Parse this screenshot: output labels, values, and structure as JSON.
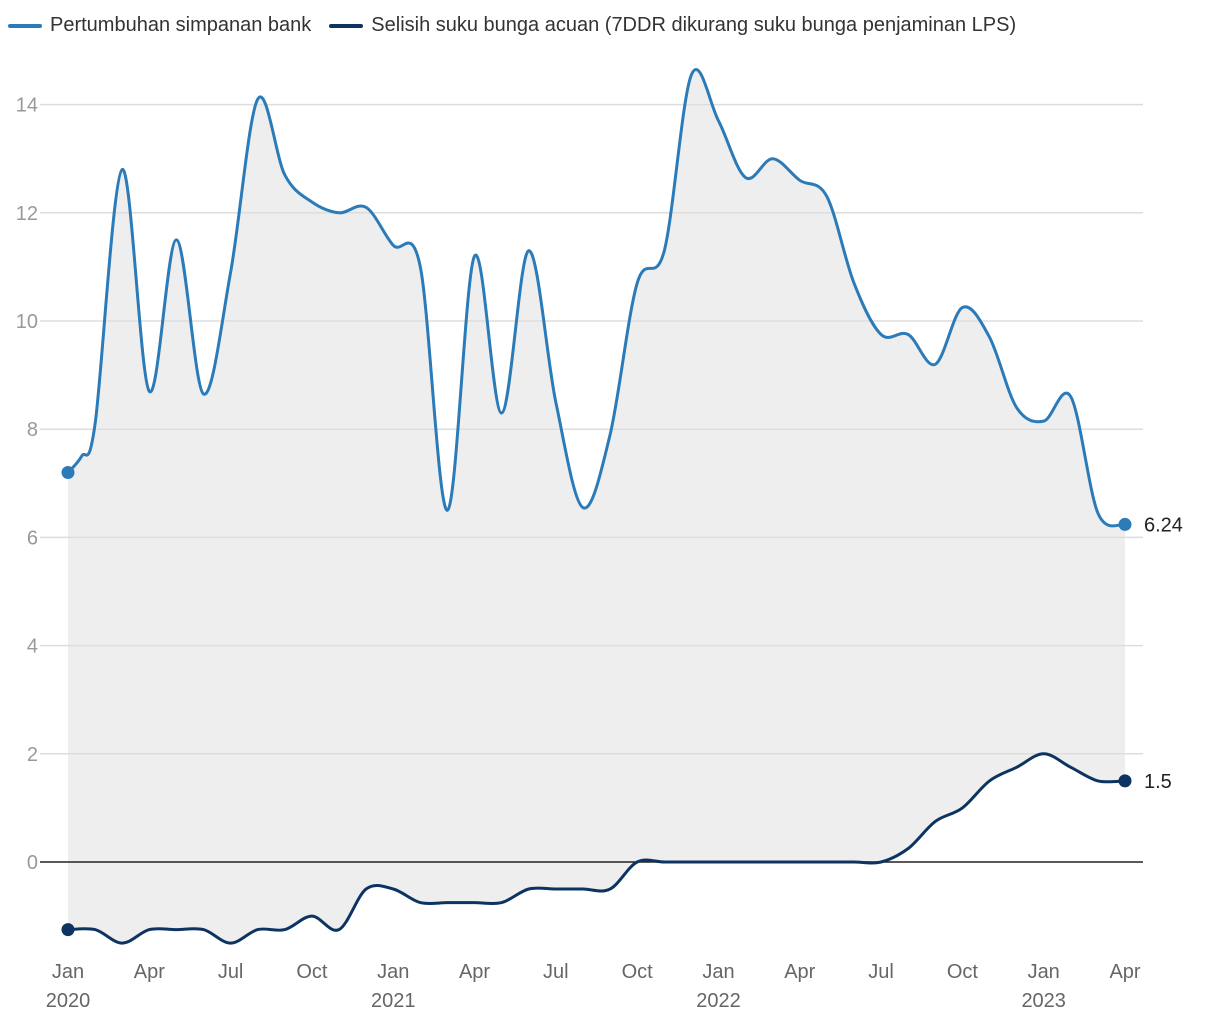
{
  "chart_data": {
    "type": "line",
    "title": "",
    "xlabel": "",
    "ylabel": "",
    "ylim": [
      -1.8,
      14.8
    ],
    "yticks": [
      0,
      2,
      4,
      6,
      8,
      10,
      12,
      14
    ],
    "grid": true,
    "legend_position": "top-left",
    "x_axis": {
      "start": "2020-01",
      "end": "2023-04",
      "ticks": [
        {
          "month_index": 0,
          "label": "Jan",
          "year": "2020"
        },
        {
          "month_index": 3,
          "label": "Apr",
          "year": ""
        },
        {
          "month_index": 6,
          "label": "Jul",
          "year": ""
        },
        {
          "month_index": 9,
          "label": "Oct",
          "year": ""
        },
        {
          "month_index": 12,
          "label": "Jan",
          "year": "2021"
        },
        {
          "month_index": 15,
          "label": "Apr",
          "year": ""
        },
        {
          "month_index": 18,
          "label": "Jul",
          "year": ""
        },
        {
          "month_index": 21,
          "label": "Oct",
          "year": ""
        },
        {
          "month_index": 24,
          "label": "Jan",
          "year": "2022"
        },
        {
          "month_index": 27,
          "label": "Apr",
          "year": ""
        },
        {
          "month_index": 30,
          "label": "Jul",
          "year": ""
        },
        {
          "month_index": 33,
          "label": "Oct",
          "year": ""
        },
        {
          "month_index": 36,
          "label": "Jan",
          "year": "2023"
        },
        {
          "month_index": 39,
          "label": "Apr",
          "year": ""
        }
      ]
    },
    "series": [
      {
        "name": "Pertumbuhan simpanan bank",
        "color": "#2b7bb9",
        "end_label": "6.24",
        "points": [
          [
            0,
            7.2
          ],
          [
            0.5,
            7.5
          ],
          [
            1,
            8.1
          ],
          [
            2,
            12.8
          ],
          [
            3,
            8.7
          ],
          [
            4,
            11.5
          ],
          [
            5,
            8.65
          ],
          [
            6,
            10.9
          ],
          [
            7,
            14.1
          ],
          [
            8,
            12.7
          ],
          [
            9,
            12.2
          ],
          [
            10,
            12.0
          ],
          [
            11,
            12.1
          ],
          [
            12,
            11.4
          ],
          [
            13,
            11.0
          ],
          [
            14,
            6.5
          ],
          [
            15,
            11.2
          ],
          [
            16,
            8.3
          ],
          [
            17,
            11.3
          ],
          [
            18,
            8.5
          ],
          [
            19,
            6.55
          ],
          [
            20,
            7.9
          ],
          [
            21,
            10.7
          ],
          [
            22,
            11.3
          ],
          [
            23,
            14.55
          ],
          [
            24,
            13.7
          ],
          [
            25,
            12.65
          ],
          [
            26,
            13.0
          ],
          [
            27,
            12.6
          ],
          [
            28,
            12.3
          ],
          [
            29,
            10.7
          ],
          [
            30,
            9.75
          ],
          [
            31,
            9.75
          ],
          [
            32,
            9.2
          ],
          [
            33,
            10.25
          ],
          [
            34,
            9.7
          ],
          [
            35,
            8.4
          ],
          [
            36,
            8.15
          ],
          [
            37,
            8.6
          ],
          [
            38,
            6.45
          ],
          [
            39,
            6.24
          ]
        ]
      },
      {
        "name": "Selisih suku bunga acuan (7DDR dikurang suku bunga penjaminan LPS)",
        "color": "#0d3461",
        "end_label": "1.5",
        "points": [
          [
            0,
            -1.25
          ],
          [
            1,
            -1.25
          ],
          [
            2,
            -1.5
          ],
          [
            3,
            -1.25
          ],
          [
            4,
            -1.25
          ],
          [
            5,
            -1.25
          ],
          [
            6,
            -1.5
          ],
          [
            7,
            -1.25
          ],
          [
            8,
            -1.25
          ],
          [
            9,
            -1.0
          ],
          [
            10,
            -1.25
          ],
          [
            11,
            -0.5
          ],
          [
            12,
            -0.5
          ],
          [
            13,
            -0.75
          ],
          [
            14,
            -0.75
          ],
          [
            15,
            -0.75
          ],
          [
            16,
            -0.75
          ],
          [
            17,
            -0.5
          ],
          [
            18,
            -0.5
          ],
          [
            19,
            -0.5
          ],
          [
            20,
            -0.5
          ],
          [
            21,
            0
          ],
          [
            22,
            0
          ],
          [
            23,
            0
          ],
          [
            24,
            0
          ],
          [
            25,
            0
          ],
          [
            26,
            0
          ],
          [
            27,
            0
          ],
          [
            28,
            0
          ],
          [
            29,
            0
          ],
          [
            30,
            0
          ],
          [
            31,
            0.25
          ],
          [
            32,
            0.75
          ],
          [
            33,
            1.0
          ],
          [
            34,
            1.5
          ],
          [
            35,
            1.75
          ],
          [
            36,
            2.0
          ],
          [
            37,
            1.75
          ],
          [
            38,
            1.5
          ],
          [
            39,
            1.5
          ]
        ]
      }
    ]
  }
}
